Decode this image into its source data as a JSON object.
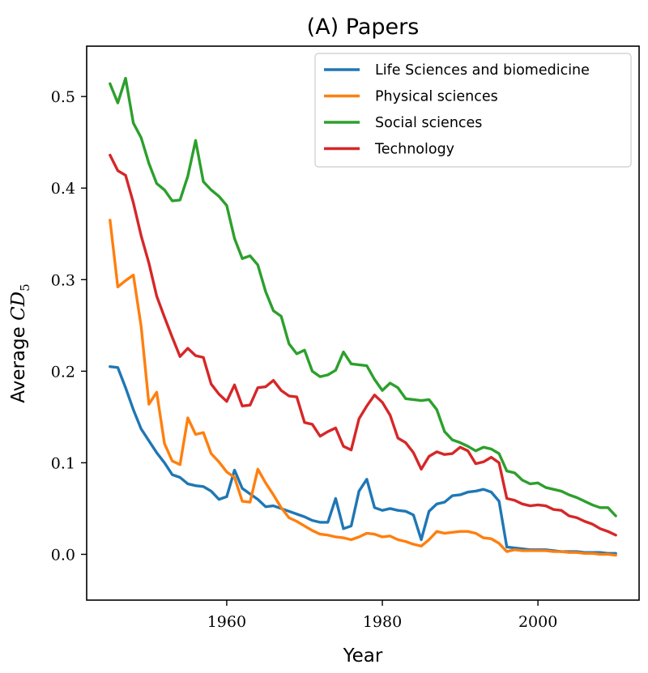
{
  "chart_data": {
    "type": "line",
    "title": "(A) Papers",
    "xlabel": "Year",
    "ylabel_main": "Average",
    "ylabel_math": "CD",
    "ylabel_sub": "5",
    "xlim": [
      1942,
      2013
    ],
    "ylim": [
      -0.05,
      0.555
    ],
    "xticks": [
      1960,
      1980,
      2000
    ],
    "xtick_labels": [
      "1960",
      "1980",
      "2000"
    ],
    "yticks": [
      0.0,
      0.1,
      0.2,
      0.3,
      0.4,
      0.5
    ],
    "ytick_labels": [
      "0.0",
      "0.1",
      "0.2",
      "0.3",
      "0.4",
      "0.5"
    ],
    "legend_position": "top-right",
    "grid": false,
    "x": [
      1945,
      1946,
      1947,
      1948,
      1949,
      1950,
      1951,
      1952,
      1953,
      1954,
      1955,
      1956,
      1957,
      1958,
      1959,
      1960,
      1961,
      1962,
      1963,
      1964,
      1965,
      1966,
      1967,
      1968,
      1969,
      1970,
      1971,
      1972,
      1973,
      1974,
      1975,
      1976,
      1977,
      1978,
      1979,
      1980,
      1981,
      1982,
      1983,
      1984,
      1985,
      1986,
      1987,
      1988,
      1989,
      1990,
      1991,
      1992,
      1993,
      1994,
      1995,
      1996,
      1997,
      1998,
      1999,
      2000,
      2001,
      2002,
      2003,
      2004,
      2005,
      2006,
      2007,
      2008,
      2009,
      2010
    ],
    "series": [
      {
        "name": "Life Sciences and biomedicine",
        "color": "#1f77b4",
        "values": [
          0.205,
          0.204,
          0.182,
          0.158,
          0.137,
          0.124,
          0.111,
          0.1,
          0.087,
          0.084,
          0.077,
          0.075,
          0.074,
          0.069,
          0.06,
          0.063,
          0.092,
          0.072,
          0.066,
          0.06,
          0.052,
          0.053,
          0.05,
          0.047,
          0.044,
          0.041,
          0.037,
          0.035,
          0.035,
          0.061,
          0.028,
          0.031,
          0.069,
          0.082,
          0.051,
          0.048,
          0.05,
          0.048,
          0.047,
          0.043,
          0.016,
          0.047,
          0.055,
          0.057,
          0.064,
          0.065,
          0.068,
          0.069,
          0.071,
          0.068,
          0.058,
          0.008,
          0.007,
          0.006,
          0.005,
          0.005,
          0.005,
          0.004,
          0.003,
          0.003,
          0.003,
          0.002,
          0.002,
          0.002,
          0.001,
          0.001
        ]
      },
      {
        "name": "Physical sciences",
        "color": "#ff7f0e",
        "values": [
          0.365,
          0.292,
          0.299,
          0.305,
          0.249,
          0.164,
          0.177,
          0.121,
          0.102,
          0.098,
          0.149,
          0.131,
          0.133,
          0.11,
          0.101,
          0.09,
          0.084,
          0.058,
          0.057,
          0.093,
          0.078,
          0.065,
          0.051,
          0.04,
          0.036,
          0.031,
          0.026,
          0.022,
          0.021,
          0.019,
          0.018,
          0.016,
          0.019,
          0.023,
          0.022,
          0.019,
          0.02,
          0.016,
          0.014,
          0.011,
          0.009,
          0.016,
          0.025,
          0.023,
          0.024,
          0.025,
          0.025,
          0.023,
          0.018,
          0.017,
          0.012,
          0.003,
          0.005,
          0.004,
          0.004,
          0.004,
          0.004,
          0.003,
          0.003,
          0.002,
          0.002,
          0.001,
          0.001,
          0.0,
          0.0,
          -0.001
        ]
      },
      {
        "name": "Social sciences",
        "color": "#2ca02c",
        "values": [
          0.514,
          0.493,
          0.52,
          0.471,
          0.455,
          0.427,
          0.405,
          0.398,
          0.386,
          0.387,
          0.413,
          0.452,
          0.407,
          0.398,
          0.391,
          0.381,
          0.345,
          0.323,
          0.326,
          0.316,
          0.287,
          0.266,
          0.26,
          0.23,
          0.219,
          0.223,
          0.2,
          0.194,
          0.196,
          0.201,
          0.221,
          0.208,
          0.207,
          0.206,
          0.191,
          0.179,
          0.187,
          0.182,
          0.17,
          0.169,
          0.168,
          0.169,
          0.158,
          0.134,
          0.125,
          0.122,
          0.118,
          0.113,
          0.117,
          0.115,
          0.11,
          0.091,
          0.089,
          0.081,
          0.077,
          0.078,
          0.073,
          0.071,
          0.069,
          0.065,
          0.062,
          0.058,
          0.054,
          0.051,
          0.051,
          0.042
        ]
      },
      {
        "name": "Technology",
        "color": "#d62728",
        "values": [
          0.436,
          0.419,
          0.414,
          0.384,
          0.348,
          0.318,
          0.282,
          0.259,
          0.237,
          0.216,
          0.225,
          0.217,
          0.215,
          0.186,
          0.175,
          0.167,
          0.185,
          0.162,
          0.163,
          0.182,
          0.183,
          0.19,
          0.179,
          0.173,
          0.172,
          0.144,
          0.142,
          0.129,
          0.134,
          0.138,
          0.118,
          0.114,
          0.148,
          0.162,
          0.174,
          0.166,
          0.152,
          0.127,
          0.122,
          0.111,
          0.093,
          0.107,
          0.112,
          0.109,
          0.11,
          0.117,
          0.113,
          0.099,
          0.101,
          0.106,
          0.1,
          0.061,
          0.059,
          0.055,
          0.053,
          0.054,
          0.053,
          0.049,
          0.048,
          0.042,
          0.04,
          0.036,
          0.033,
          0.028,
          0.025,
          0.021
        ]
      }
    ]
  }
}
